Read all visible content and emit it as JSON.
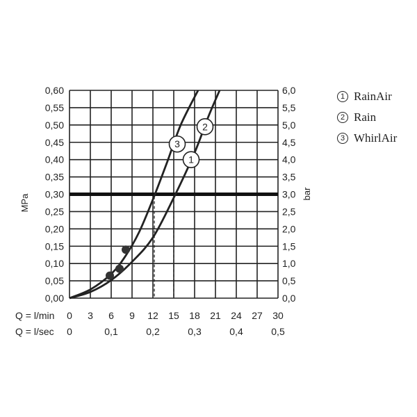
{
  "chart_data": {
    "type": "line",
    "x_unit_labels": [
      {
        "label": "Q = l/min",
        "ticks": [
          "0",
          "3",
          "6",
          "9",
          "12",
          "15",
          "18",
          "21",
          "24",
          "27",
          "30"
        ]
      },
      {
        "label": "Q = l/sec",
        "ticks": [
          "0",
          "0,1",
          "0,2",
          "0,3",
          "0,4",
          "0,5"
        ],
        "values": [
          0,
          6,
          12,
          18,
          24,
          30
        ]
      }
    ],
    "y_left": {
      "label": "MPa",
      "ticks": [
        "0,00",
        "0,05",
        "0,10",
        "0,15",
        "0,20",
        "0,25",
        "0,30",
        "0,35",
        "0,40",
        "0,45",
        "0,50",
        "0,55",
        "0,60"
      ],
      "range": [
        0,
        0.6
      ]
    },
    "y_right": {
      "label": "bar",
      "ticks": [
        "0,0",
        "0,5",
        "1,0",
        "1,5",
        "2,0",
        "2,5",
        "3,0",
        "3,5",
        "4,0",
        "4,5",
        "5,0",
        "5,5",
        "6,0"
      ],
      "range": [
        0,
        6
      ]
    },
    "xlim": [
      0,
      30
    ],
    "grid": true,
    "reference_line_mpa": 0.3,
    "series": [
      {
        "marker": "1",
        "name": "RainAir",
        "x": [
          0,
          3,
          6,
          9,
          12,
          15,
          18,
          20,
          21.6
        ],
        "y": [
          0,
          0.018,
          0.052,
          0.105,
          0.175,
          0.29,
          0.42,
          0.525,
          0.6
        ],
        "label_at": [
          17.5,
          0.4
        ],
        "drop_at_x": 15
      },
      {
        "marker": "2",
        "name": "Rain",
        "x": [
          0,
          3,
          6,
          9,
          12,
          15,
          18,
          20,
          21.6
        ],
        "y": [
          0,
          0.018,
          0.052,
          0.105,
          0.175,
          0.29,
          0.42,
          0.525,
          0.6
        ],
        "label_at": [
          19.5,
          0.495
        ]
      },
      {
        "marker": "3",
        "name": "WhirlAir",
        "x": [
          0,
          3,
          6,
          8,
          10,
          12,
          14,
          16,
          18.5
        ],
        "y": [
          0,
          0.025,
          0.07,
          0.12,
          0.19,
          0.285,
          0.39,
          0.5,
          0.6
        ],
        "label_at": [
          15.5,
          0.445
        ],
        "drop_at_x": 12.2
      }
    ],
    "points": [
      {
        "x": 5.8,
        "y": 0.065
      },
      {
        "x": 7.2,
        "y": 0.085
      },
      {
        "x": 8.1,
        "y": 0.14
      }
    ]
  },
  "legend": [
    {
      "marker": "1",
      "name": "RainAir"
    },
    {
      "marker": "2",
      "name": "Rain"
    },
    {
      "marker": "3",
      "name": "WhirlAir"
    }
  ]
}
